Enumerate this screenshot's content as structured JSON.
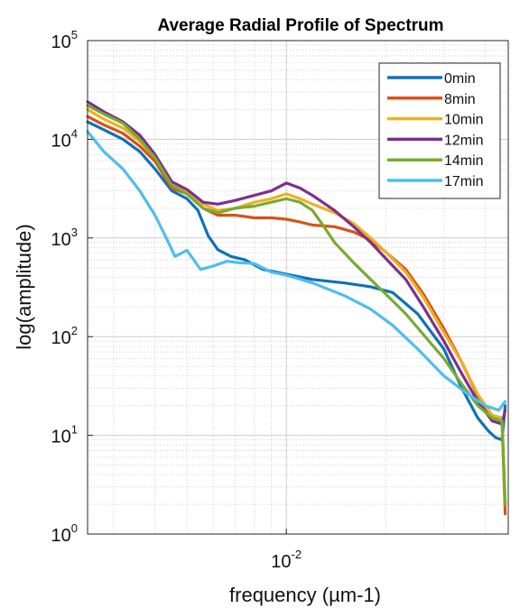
{
  "chart_data": {
    "type": "line",
    "title": "Average Radial Profile of Spectrum",
    "xlabel": "frequency (µm-1)",
    "ylabel": "log(amplitude)",
    "x_scale": "log",
    "y_scale": "log",
    "xlim": [
      0.0025,
      0.047
    ],
    "ylim": [
      1,
      100000
    ],
    "x_ticks": [
      {
        "value": 0.01,
        "base": "10",
        "exp": "-2"
      }
    ],
    "y_ticks": [
      {
        "value": 1,
        "base": "10",
        "exp": "0"
      },
      {
        "value": 10,
        "base": "10",
        "exp": "1"
      },
      {
        "value": 100,
        "base": "10",
        "exp": "2"
      },
      {
        "value": 1000,
        "base": "10",
        "exp": "3"
      },
      {
        "value": 10000,
        "base": "10",
        "exp": "4"
      },
      {
        "value": 100000,
        "base": "10",
        "exp": "5"
      }
    ],
    "grid": true,
    "legend_position": "top-right",
    "series": [
      {
        "name": "0min",
        "color": "#0f72b8",
        "x": [
          0.0025,
          0.0028,
          0.0032,
          0.0036,
          0.004,
          0.0045,
          0.005,
          0.0054,
          0.0058,
          0.0062,
          0.0068,
          0.0075,
          0.0085,
          0.01,
          0.012,
          0.015,
          0.018,
          0.021,
          0.025,
          0.03,
          0.034,
          0.038,
          0.041,
          0.043,
          0.045,
          0.046
        ],
        "y": [
          15000,
          12500,
          10000,
          7500,
          5000,
          3000,
          2500,
          1900,
          1050,
          760,
          650,
          600,
          480,
          430,
          380,
          350,
          320,
          280,
          170,
          75,
          30,
          15,
          11,
          9.5,
          9,
          20
        ]
      },
      {
        "name": "8min",
        "color": "#d85218",
        "x": [
          0.0025,
          0.0028,
          0.0032,
          0.0036,
          0.004,
          0.0045,
          0.005,
          0.0056,
          0.0062,
          0.007,
          0.008,
          0.009,
          0.01,
          0.011,
          0.012,
          0.014,
          0.016,
          0.018,
          0.02,
          0.023,
          0.026,
          0.03,
          0.034,
          0.038,
          0.042,
          0.045,
          0.046
        ],
        "y": [
          17000,
          14000,
          11500,
          8500,
          6000,
          3200,
          2800,
          2000,
          1700,
          1700,
          1600,
          1600,
          1550,
          1450,
          1350,
          1300,
          1150,
          950,
          720,
          480,
          270,
          120,
          55,
          25,
          15,
          14,
          1.6
        ]
      },
      {
        "name": "10min",
        "color": "#edb120",
        "x": [
          0.0025,
          0.0028,
          0.0032,
          0.0036,
          0.004,
          0.0045,
          0.005,
          0.0056,
          0.0062,
          0.007,
          0.008,
          0.009,
          0.01,
          0.011,
          0.012,
          0.014,
          0.016,
          0.018,
          0.02,
          0.023,
          0.026,
          0.03,
          0.034,
          0.038,
          0.042,
          0.045,
          0.046
        ],
        "y": [
          20000,
          16000,
          13000,
          9500,
          6500,
          3400,
          3000,
          2200,
          1900,
          2000,
          2300,
          2500,
          2800,
          2500,
          2200,
          1800,
          1400,
          1000,
          720,
          450,
          250,
          110,
          55,
          26,
          16,
          15,
          2
        ]
      },
      {
        "name": "12min",
        "color": "#7e2f8e",
        "x": [
          0.0025,
          0.0028,
          0.0032,
          0.0036,
          0.004,
          0.0045,
          0.005,
          0.0056,
          0.0062,
          0.007,
          0.008,
          0.009,
          0.01,
          0.011,
          0.012,
          0.014,
          0.016,
          0.018,
          0.02,
          0.023,
          0.026,
          0.03,
          0.034,
          0.038,
          0.042,
          0.045,
          0.046
        ],
        "y": [
          24000,
          19000,
          15000,
          11000,
          7000,
          3700,
          3100,
          2300,
          2200,
          2400,
          2700,
          3000,
          3600,
          3200,
          2700,
          1900,
          1300,
          900,
          620,
          380,
          200,
          90,
          42,
          22,
          14,
          13,
          18
        ]
      },
      {
        "name": "14min",
        "color": "#77ac30",
        "x": [
          0.0025,
          0.0028,
          0.0032,
          0.0036,
          0.004,
          0.0045,
          0.005,
          0.0056,
          0.0062,
          0.007,
          0.008,
          0.009,
          0.01,
          0.011,
          0.012,
          0.013,
          0.014,
          0.016,
          0.018,
          0.02,
          0.023,
          0.026,
          0.03,
          0.034,
          0.038,
          0.042,
          0.045,
          0.046
        ],
        "y": [
          22000,
          18000,
          14500,
          10000,
          6500,
          3400,
          2800,
          2000,
          1800,
          2000,
          2100,
          2300,
          2500,
          2300,
          1900,
          1300,
          900,
          560,
          380,
          270,
          170,
          105,
          60,
          33,
          20,
          15,
          14,
          2
        ]
      },
      {
        "name": "17min",
        "color": "#4dbeee",
        "x": [
          0.0025,
          0.0028,
          0.0032,
          0.0036,
          0.004,
          0.0043,
          0.0046,
          0.005,
          0.0055,
          0.006,
          0.0066,
          0.0072,
          0.008,
          0.009,
          0.01,
          0.012,
          0.015,
          0.018,
          0.021,
          0.025,
          0.03,
          0.035,
          0.04,
          0.044,
          0.046
        ],
        "y": [
          12000,
          7500,
          5000,
          3000,
          1700,
          1050,
          650,
          750,
          480,
          520,
          580,
          560,
          550,
          450,
          420,
          350,
          260,
          190,
          130,
          75,
          40,
          27,
          20,
          18,
          22
        ]
      }
    ]
  }
}
